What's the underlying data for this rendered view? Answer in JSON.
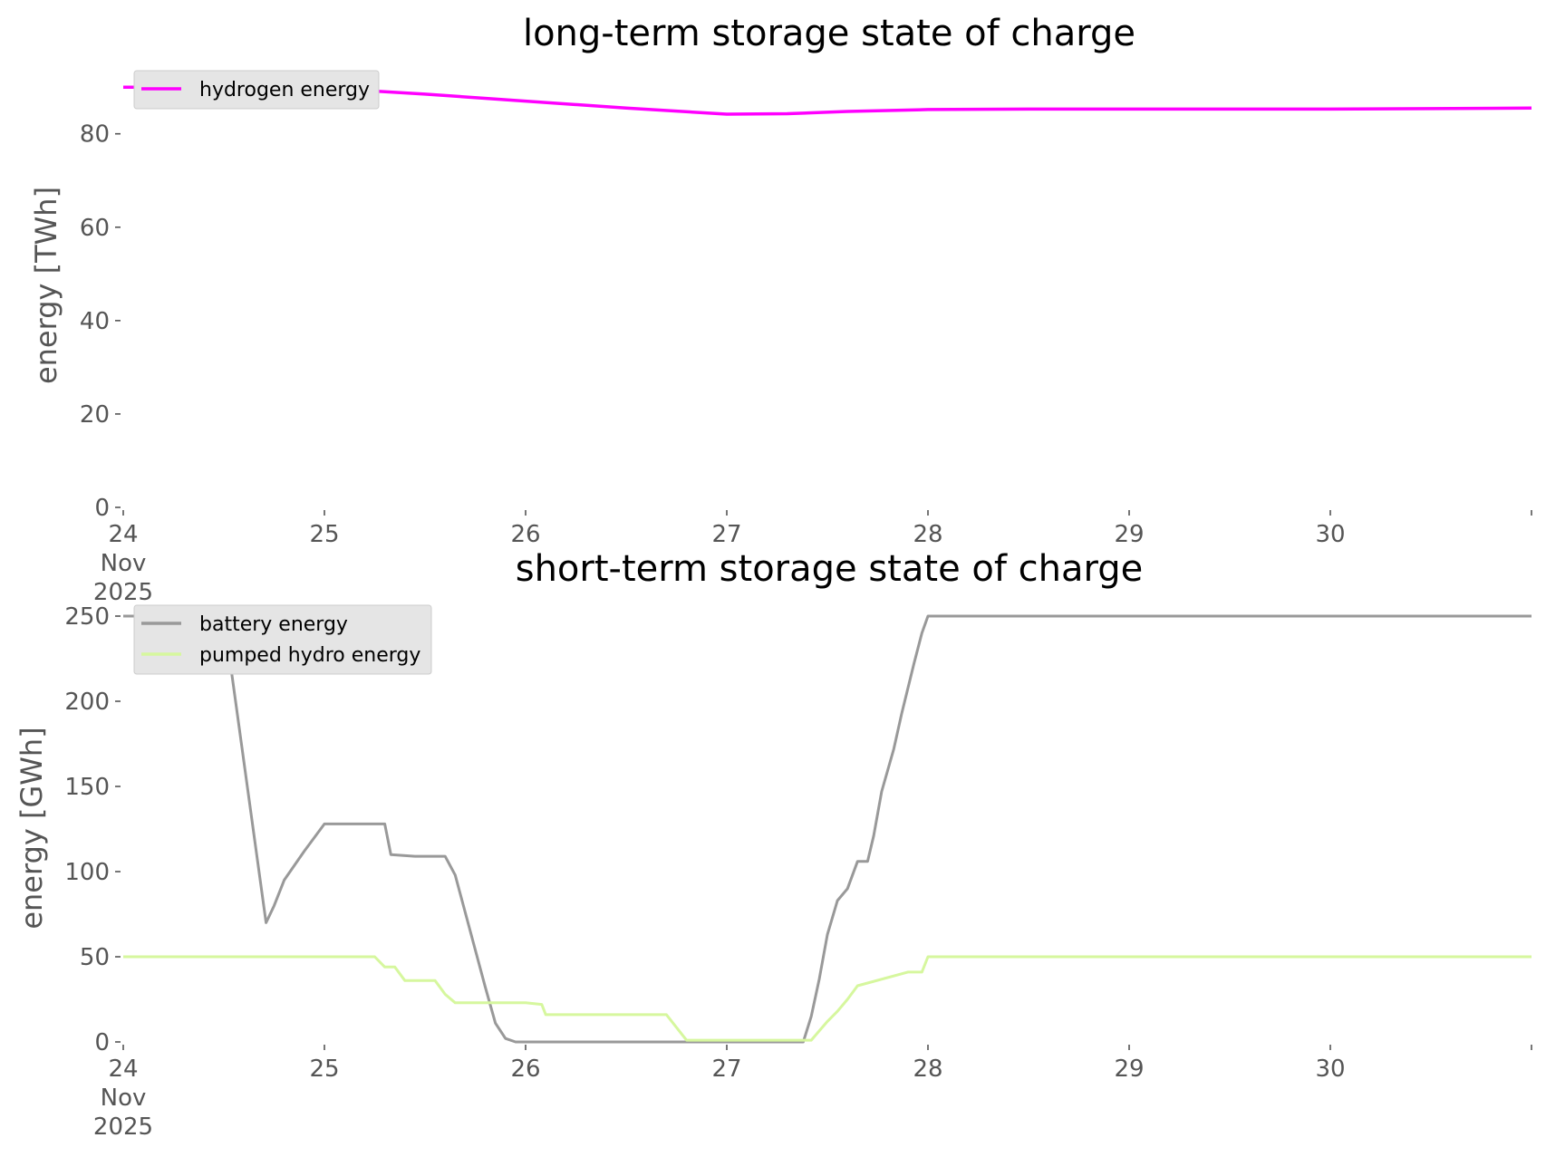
{
  "chart_data": [
    {
      "type": "line",
      "title": "long-term storage state of charge",
      "xlabel": "",
      "ylabel": "energy [TWh]",
      "xlim": [
        "2025-11-24 00:00",
        "2025-11-31 00:00"
      ],
      "ylim": [
        0,
        91
      ],
      "yticks": [
        0,
        20,
        40,
        60,
        80
      ],
      "xtick_labels": [
        "24\nNov\n2025",
        "25",
        "26",
        "27",
        "28",
        "29",
        "30",
        ""
      ],
      "xtick_days": [
        0,
        1,
        2,
        3,
        4,
        5,
        6,
        7
      ],
      "grid": false,
      "legend": "top-left",
      "series": [
        {
          "name": "hydrogen energy",
          "color": "#ff00ff",
          "x_days": [
            0,
            0.5,
            1,
            1.5,
            2,
            2.5,
            3,
            3.3,
            3.6,
            4,
            4.5,
            5,
            5.5,
            6,
            6.5,
            7
          ],
          "y": [
            90,
            90,
            89.8,
            88.5,
            87,
            85.5,
            84.2,
            84.3,
            84.8,
            85.2,
            85.3,
            85.3,
            85.3,
            85.3,
            85.4,
            85.5
          ]
        }
      ]
    },
    {
      "type": "line",
      "title": "short-term storage state of charge",
      "xlabel": "",
      "ylabel": "energy [GWh]",
      "xlim": [
        "2025-11-24 00:00",
        "2025-11-31 00:00"
      ],
      "ylim": [
        0,
        250
      ],
      "yticks": [
        0,
        50,
        100,
        150,
        200,
        250
      ],
      "xtick_labels": [
        "24\nNov\n2025",
        "25",
        "26",
        "27",
        "28",
        "29",
        "30",
        ""
      ],
      "xtick_days": [
        0,
        1,
        2,
        3,
        4,
        5,
        6,
        7
      ],
      "grid": false,
      "legend": "top-left",
      "series": [
        {
          "name": "battery energy",
          "color": "#999999",
          "x_days": [
            0,
            0.5,
            0.71,
            0.75,
            0.8,
            0.9,
            1.0,
            1.15,
            1.3,
            1.33,
            1.45,
            1.6,
            1.65,
            1.7,
            1.75,
            1.8,
            1.85,
            1.9,
            1.95,
            2.0,
            3.0,
            3.38,
            3.42,
            3.46,
            3.5,
            3.55,
            3.6,
            3.65,
            3.7,
            3.73,
            3.77,
            3.83,
            3.87,
            3.93,
            3.97,
            4.0,
            5,
            6,
            7
          ],
          "y": [
            250,
            250,
            70,
            80,
            95,
            112,
            128,
            128,
            128,
            110,
            109,
            109,
            98,
            76,
            54,
            32,
            11,
            2,
            0,
            0,
            0,
            0,
            15,
            37,
            63,
            83,
            90,
            106,
            106,
            121,
            147,
            172,
            193,
            222,
            240,
            250,
            250,
            250,
            250
          ]
        },
        {
          "name": "pumped hydro energy",
          "color": "#d6f79e",
          "x_days": [
            0,
            1.25,
            1.3,
            1.35,
            1.4,
            1.55,
            1.6,
            1.65,
            2.0,
            2.08,
            2.1,
            2.65,
            2.7,
            2.8,
            3.0,
            3.4,
            3.42,
            3.5,
            3.55,
            3.6,
            3.65,
            3.9,
            3.97,
            4.0,
            5,
            6,
            7
          ],
          "y": [
            50,
            50,
            44,
            44,
            36,
            36,
            28,
            23,
            23,
            22,
            16,
            16,
            16,
            1,
            1,
            1,
            1,
            12,
            18,
            25,
            33,
            41,
            41,
            50,
            50,
            50,
            50
          ]
        }
      ]
    }
  ]
}
